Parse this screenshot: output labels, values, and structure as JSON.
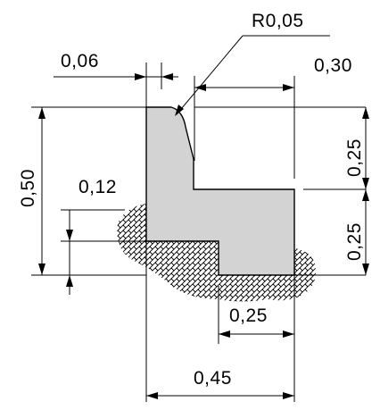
{
  "drawing": {
    "colors": {
      "profile_fill": "#d3d3d3",
      "lines": "#000000",
      "hatch": "#000000",
      "background": "#ffffff"
    },
    "labels": {
      "radius": "R0,05",
      "top_gap": "0,06",
      "top_width": "0,30",
      "total_height": "0,50",
      "upper_height": "0,25",
      "lower_height": "0,25",
      "embed_depth": "0,12",
      "foot_width": "0,25",
      "total_width": "0,45"
    }
  }
}
